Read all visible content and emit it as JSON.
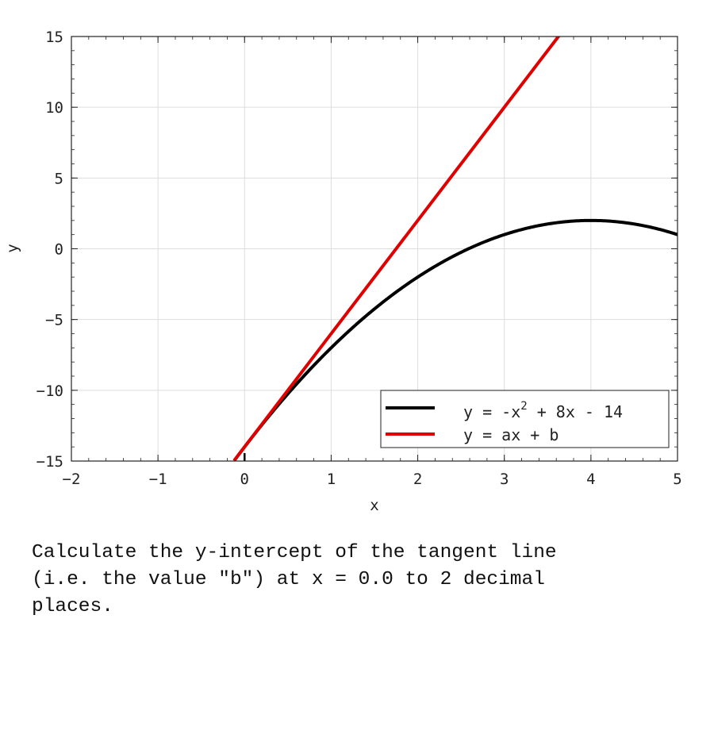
{
  "chart_data": {
    "type": "line",
    "xlabel": "x",
    "ylabel": "y",
    "xlim": [
      -2,
      5
    ],
    "ylim": [
      -15,
      15
    ],
    "x_ticks": [
      -2,
      -1,
      0,
      1,
      2,
      3,
      4,
      5
    ],
    "y_ticks": [
      -15,
      -10,
      -5,
      0,
      5,
      10,
      15
    ],
    "grid": true,
    "legend_position": "bottom-right",
    "series": [
      {
        "name": "y = -x^2 + 8x - 14",
        "legend_text": "y = -x",
        "legend_superscript": "2",
        "legend_suffix": " + 8x - 14",
        "color": "#000000",
        "coefficients": [
          -1,
          8,
          -14
        ],
        "x": [
          -0.12,
          0,
          0.5,
          1,
          1.5,
          2,
          2.5,
          3,
          3.5,
          4,
          4.5,
          5
        ],
        "y": [
          -14.97,
          -14,
          -10.25,
          -7,
          -4.25,
          -2,
          -0.25,
          1,
          1.75,
          2,
          1.75,
          1
        ]
      },
      {
        "name": "y = ax + b",
        "legend_text": "y = ax + b",
        "color": "#e00000",
        "x": [
          -0.12,
          3.63
        ],
        "y": [
          -14.96,
          15.04
        ]
      }
    ],
    "marker_x": 0
  },
  "question": {
    "text": "Calculate the y-intercept of the tangent line\n(i.e. the value \"b\") at x = 0.0 to 2 decimal\nplaces."
  }
}
